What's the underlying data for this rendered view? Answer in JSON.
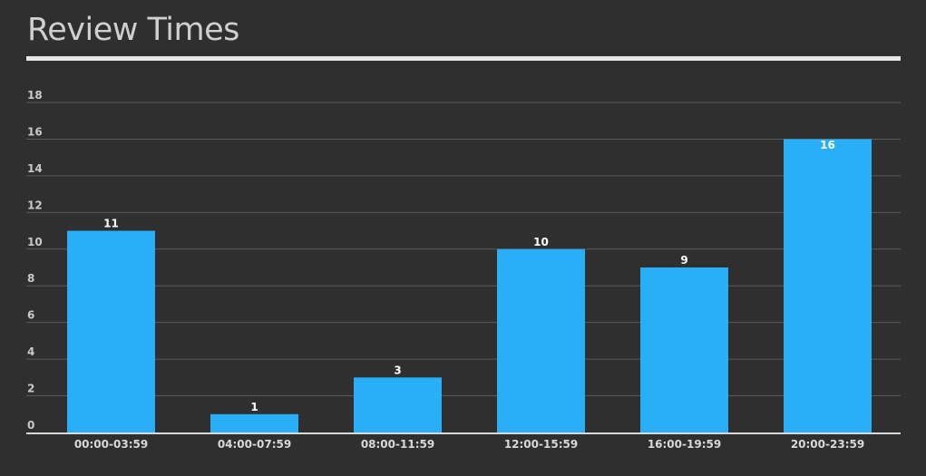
{
  "title": "Review Times",
  "colors": {
    "background": "#2f2f2f",
    "bar": "#29aff7",
    "title": "#cfcfcf",
    "gridline": "#5a5a5a",
    "axis": "#d9d9d9"
  },
  "chart_data": {
    "type": "bar",
    "title": "Review Times",
    "xlabel": "",
    "ylabel": "",
    "categories": [
      "00:00-03:59",
      "04:00-07:59",
      "08:00-11:59",
      "12:00-15:59",
      "16:00-19:59",
      "20:00-23:59"
    ],
    "values": [
      11,
      1,
      3,
      10,
      9,
      16
    ],
    "data_labels": [
      "11",
      "1",
      "3",
      "10",
      "9",
      "16"
    ],
    "ylim": [
      0,
      18
    ],
    "yticks": [
      0,
      2,
      4,
      6,
      8,
      10,
      12,
      14,
      16,
      18
    ],
    "ytick_labels": [
      "0",
      "2",
      "4",
      "6",
      "8",
      "10",
      "12",
      "14",
      "16",
      "18"
    ],
    "grid": true,
    "legend": "none"
  }
}
